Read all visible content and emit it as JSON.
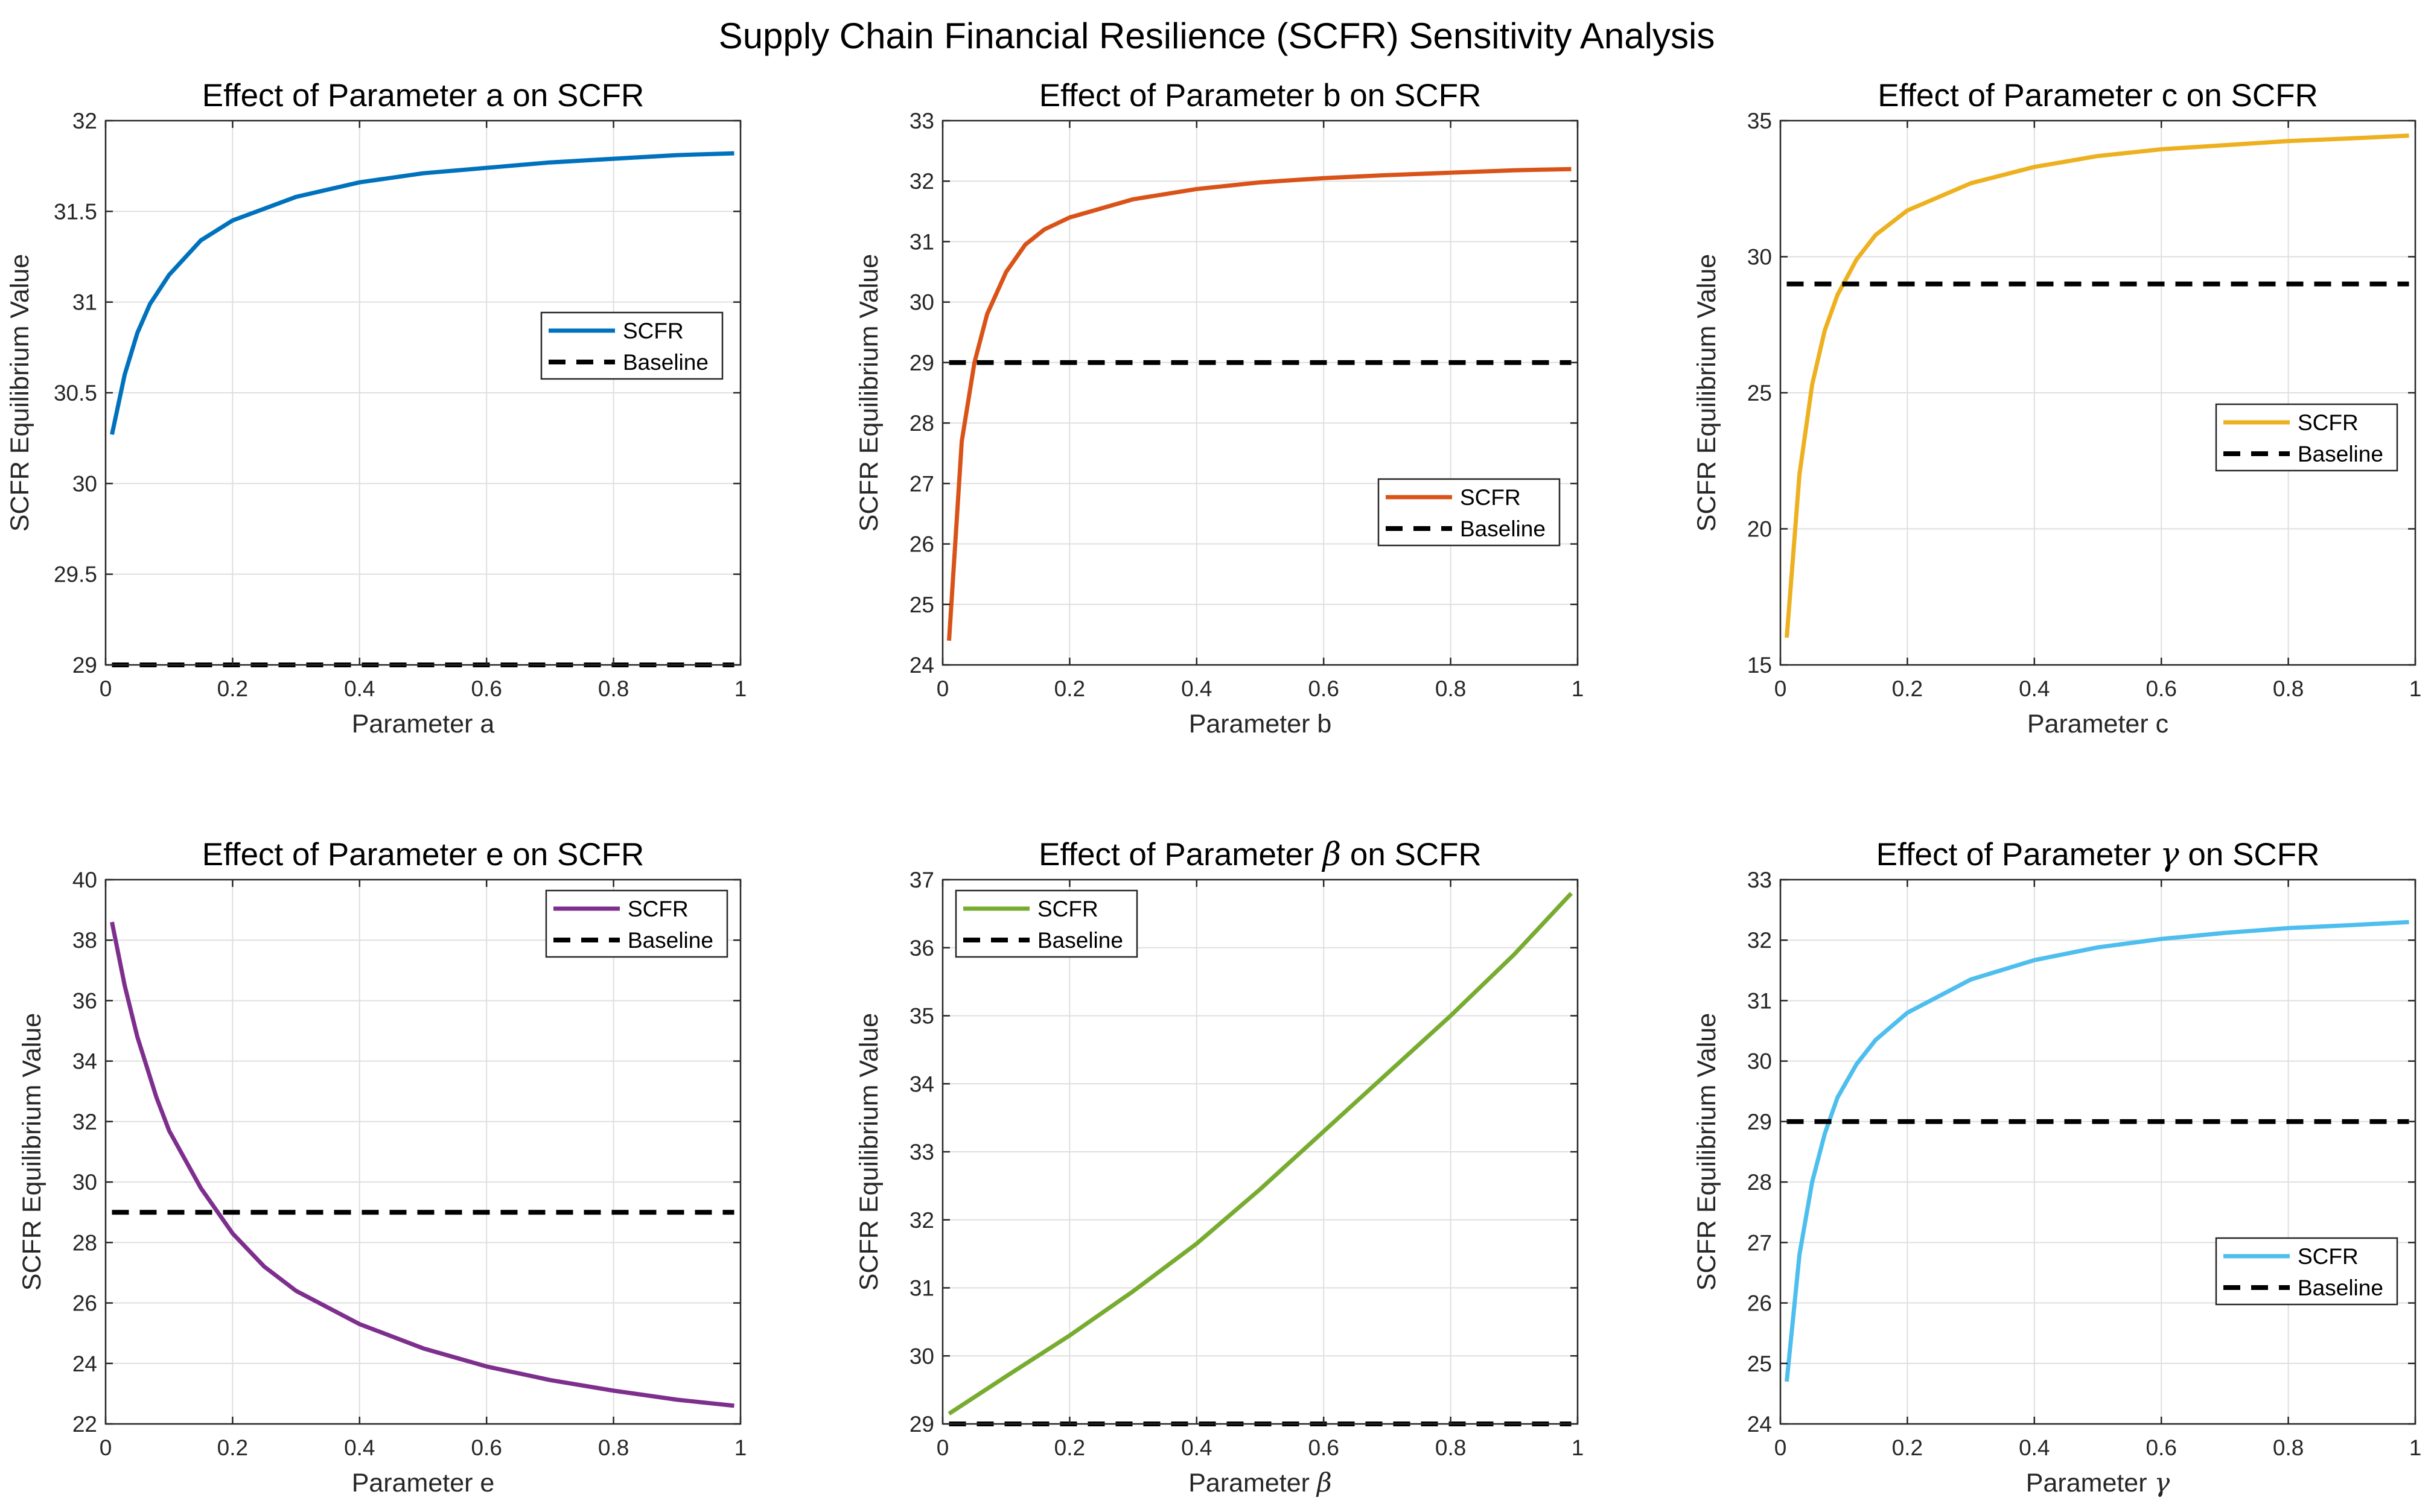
{
  "figure": {
    "title": "Supply Chain Financial Resilience (SCFR) Sensitivity Analysis",
    "colors": {
      "axis": "#262626",
      "grid": "#dfdfdf",
      "baseline": "#000000"
    }
  },
  "chart_data": [
    {
      "type": "line",
      "title_prefix": "Effect of Parameter ",
      "title_symbol": "a",
      "title_symbol_greek": false,
      "title_suffix": " on SCFR",
      "xlabel_prefix": "Parameter ",
      "xlabel_symbol": "a",
      "xlabel_symbol_greek": false,
      "ylabel": "SCFR Equilibrium Value",
      "xlim": [
        0,
        1
      ],
      "ylim": [
        29,
        32
      ],
      "xticks": [
        0,
        0.2,
        0.4,
        0.6,
        0.8,
        1
      ],
      "xtick_labels": [
        "0",
        "0.2",
        "0.4",
        "0.6",
        "0.8",
        "1"
      ],
      "yticks": [
        29,
        29.5,
        30,
        30.5,
        31,
        31.5,
        32
      ],
      "ytick_labels": [
        "29",
        "29.5",
        "30",
        "30.5",
        "31",
        "31.5",
        "32"
      ],
      "grid": true,
      "legend_position": "right-middle",
      "series": [
        {
          "name": "SCFR",
          "color": "#0072BD",
          "style": "solid",
          "x": [
            0.01,
            0.03,
            0.05,
            0.07,
            0.1,
            0.15,
            0.2,
            0.3,
            0.4,
            0.5,
            0.6,
            0.7,
            0.8,
            0.9,
            0.99
          ],
          "y": [
            30.27,
            30.6,
            30.83,
            30.99,
            31.15,
            31.34,
            31.45,
            31.58,
            31.66,
            31.71,
            31.74,
            31.77,
            31.79,
            31.81,
            31.82
          ]
        },
        {
          "name": "Baseline",
          "color": "#000000",
          "style": "dashed",
          "x": [
            0.01,
            0.99
          ],
          "y": [
            29,
            29
          ]
        }
      ]
    },
    {
      "type": "line",
      "title_prefix": "Effect of Parameter ",
      "title_symbol": "b",
      "title_symbol_greek": false,
      "title_suffix": " on SCFR",
      "xlabel_prefix": "Parameter ",
      "xlabel_symbol": "b",
      "xlabel_symbol_greek": false,
      "ylabel": "SCFR Equilibrium Value",
      "xlim": [
        0,
        1
      ],
      "ylim": [
        24,
        33
      ],
      "xticks": [
        0,
        0.2,
        0.4,
        0.6,
        0.8,
        1
      ],
      "xtick_labels": [
        "0",
        "0.2",
        "0.4",
        "0.6",
        "0.8",
        "1"
      ],
      "yticks": [
        24,
        25,
        26,
        27,
        28,
        29,
        30,
        31,
        32,
        33
      ],
      "ytick_labels": [
        "24",
        "25",
        "26",
        "27",
        "28",
        "29",
        "30",
        "31",
        "32",
        "33"
      ],
      "grid": true,
      "legend_position": "lower-right",
      "series": [
        {
          "name": "SCFR",
          "color": "#D95319",
          "style": "solid",
          "x": [
            0.01,
            0.03,
            0.05,
            0.07,
            0.1,
            0.13,
            0.16,
            0.2,
            0.3,
            0.4,
            0.5,
            0.6,
            0.7,
            0.8,
            0.9,
            0.99
          ],
          "y": [
            24.4,
            27.7,
            29.0,
            29.8,
            30.5,
            30.95,
            31.2,
            31.4,
            31.7,
            31.87,
            31.98,
            32.05,
            32.1,
            32.14,
            32.18,
            32.2
          ]
        },
        {
          "name": "Baseline",
          "color": "#000000",
          "style": "dashed",
          "x": [
            0.01,
            0.99
          ],
          "y": [
            29,
            29
          ]
        }
      ]
    },
    {
      "type": "line",
      "title_prefix": "Effect of Parameter ",
      "title_symbol": "c",
      "title_symbol_greek": false,
      "title_suffix": " on SCFR",
      "xlabel_prefix": "Parameter ",
      "xlabel_symbol": "c",
      "xlabel_symbol_greek": false,
      "ylabel": "SCFR Equilibrium Value",
      "xlim": [
        0,
        1
      ],
      "ylim": [
        15,
        35
      ],
      "xticks": [
        0,
        0.2,
        0.4,
        0.6,
        0.8,
        1
      ],
      "xtick_labels": [
        "0",
        "0.2",
        "0.4",
        "0.6",
        "0.8",
        "1"
      ],
      "yticks": [
        15,
        20,
        25,
        30,
        35
      ],
      "ytick_labels": [
        "15",
        "20",
        "25",
        "30",
        "35"
      ],
      "grid": true,
      "legend_position": "right-middle",
      "series": [
        {
          "name": "SCFR",
          "color": "#EDB120",
          "style": "solid",
          "x": [
            0.01,
            0.03,
            0.05,
            0.07,
            0.09,
            0.12,
            0.15,
            0.2,
            0.3,
            0.4,
            0.5,
            0.6,
            0.7,
            0.8,
            0.9,
            0.99
          ],
          "y": [
            16.0,
            22.0,
            25.3,
            27.3,
            28.6,
            29.9,
            30.8,
            31.7,
            32.7,
            33.3,
            33.7,
            33.95,
            34.1,
            34.25,
            34.35,
            34.45
          ]
        },
        {
          "name": "Baseline",
          "color": "#000000",
          "style": "dashed",
          "x": [
            0.01,
            0.99
          ],
          "y": [
            29,
            29
          ]
        }
      ]
    },
    {
      "type": "line",
      "title_prefix": "Effect of Parameter ",
      "title_symbol": "e",
      "title_symbol_greek": false,
      "title_suffix": " on SCFR",
      "xlabel_prefix": "Parameter ",
      "xlabel_symbol": "e",
      "xlabel_symbol_greek": false,
      "ylabel": "SCFR Equilibrium Value",
      "xlim": [
        0,
        1
      ],
      "ylim": [
        22,
        40
      ],
      "xticks": [
        0,
        0.2,
        0.4,
        0.6,
        0.8,
        1
      ],
      "xtick_labels": [
        "0",
        "0.2",
        "0.4",
        "0.6",
        "0.8",
        "1"
      ],
      "yticks": [
        22,
        24,
        26,
        28,
        30,
        32,
        34,
        36,
        38,
        40
      ],
      "ytick_labels": [
        "22",
        "24",
        "26",
        "28",
        "30",
        "32",
        "34",
        "36",
        "38",
        "40"
      ],
      "grid": true,
      "legend_position": "top-right",
      "series": [
        {
          "name": "SCFR",
          "color": "#7E2F8E",
          "style": "solid",
          "x": [
            0.01,
            0.03,
            0.05,
            0.08,
            0.1,
            0.15,
            0.2,
            0.25,
            0.3,
            0.4,
            0.5,
            0.6,
            0.7,
            0.8,
            0.9,
            0.99
          ],
          "y": [
            38.6,
            36.5,
            34.8,
            32.8,
            31.7,
            29.8,
            28.3,
            27.2,
            26.4,
            25.3,
            24.5,
            23.9,
            23.45,
            23.1,
            22.8,
            22.6
          ]
        },
        {
          "name": "Baseline",
          "color": "#000000",
          "style": "dashed",
          "x": [
            0.01,
            0.99
          ],
          "y": [
            29,
            29
          ]
        }
      ]
    },
    {
      "type": "line",
      "title_prefix": "Effect of Parameter ",
      "title_symbol": "β",
      "title_symbol_greek": true,
      "title_suffix": " on SCFR",
      "xlabel_prefix": "Parameter ",
      "xlabel_symbol": "β",
      "xlabel_symbol_greek": true,
      "ylabel": "SCFR Equilibrium Value",
      "xlim": [
        0,
        1
      ],
      "ylim": [
        29,
        37
      ],
      "xticks": [
        0,
        0.2,
        0.4,
        0.6,
        0.8,
        1
      ],
      "xtick_labels": [
        "0",
        "0.2",
        "0.4",
        "0.6",
        "0.8",
        "1"
      ],
      "yticks": [
        29,
        30,
        31,
        32,
        33,
        34,
        35,
        36,
        37
      ],
      "ytick_labels": [
        "29",
        "30",
        "31",
        "32",
        "33",
        "34",
        "35",
        "36",
        "37"
      ],
      "grid": true,
      "legend_position": "top-left",
      "series": [
        {
          "name": "SCFR",
          "color": "#77AC30",
          "style": "solid",
          "x": [
            0.01,
            0.1,
            0.2,
            0.3,
            0.4,
            0.5,
            0.6,
            0.7,
            0.8,
            0.9,
            0.99
          ],
          "y": [
            29.15,
            29.7,
            30.3,
            30.95,
            31.65,
            32.45,
            33.3,
            34.15,
            35.0,
            35.9,
            36.8
          ]
        },
        {
          "name": "Baseline",
          "color": "#000000",
          "style": "dashed",
          "x": [
            0.01,
            0.99
          ],
          "y": [
            29,
            29
          ]
        }
      ]
    },
    {
      "type": "line",
      "title_prefix": "Effect of Parameter ",
      "title_symbol": "γ",
      "title_symbol_greek": true,
      "title_suffix": " on SCFR",
      "xlabel_prefix": "Parameter ",
      "xlabel_symbol": "γ",
      "xlabel_symbol_greek": true,
      "ylabel": "SCFR Equilibrium Value",
      "xlim": [
        0,
        1
      ],
      "ylim": [
        24,
        33
      ],
      "xticks": [
        0,
        0.2,
        0.4,
        0.6,
        0.8,
        1
      ],
      "xtick_labels": [
        "0",
        "0.2",
        "0.4",
        "0.6",
        "0.8",
        "1"
      ],
      "yticks": [
        24,
        25,
        26,
        27,
        28,
        29,
        30,
        31,
        32,
        33
      ],
      "ytick_labels": [
        "24",
        "25",
        "26",
        "27",
        "28",
        "29",
        "30",
        "31",
        "32",
        "33"
      ],
      "grid": true,
      "legend_position": "lower-right",
      "series": [
        {
          "name": "SCFR",
          "color": "#4DBEEE",
          "style": "solid",
          "x": [
            0.01,
            0.03,
            0.05,
            0.07,
            0.09,
            0.12,
            0.15,
            0.2,
            0.3,
            0.4,
            0.5,
            0.6,
            0.7,
            0.8,
            0.9,
            0.99
          ],
          "y": [
            24.7,
            26.8,
            28.0,
            28.8,
            29.4,
            29.95,
            30.35,
            30.8,
            31.35,
            31.67,
            31.88,
            32.02,
            32.12,
            32.2,
            32.25,
            32.3
          ]
        },
        {
          "name": "Baseline",
          "color": "#000000",
          "style": "dashed",
          "x": [
            0.01,
            0.99
          ],
          "y": [
            29,
            29
          ]
        }
      ]
    }
  ]
}
